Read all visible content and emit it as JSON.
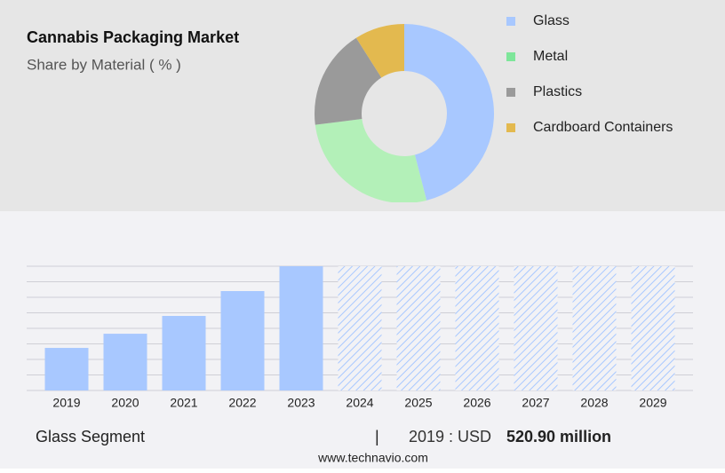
{
  "chart_data": [
    {
      "type": "donut",
      "title": "Cannabis Packaging Market",
      "subtitle": "Share by Material ( % )",
      "categories": [
        "Glass",
        "Metal",
        "Plastics",
        "Cardboard Containers"
      ],
      "values": [
        46,
        27,
        18,
        9
      ],
      "colors": [
        "#a8c8ff",
        "#b3f0b8",
        "#9a9a9a",
        "#e3b94f"
      ],
      "legend_colors": [
        "#a8c8ff",
        "#7ee69a",
        "#9a9a9a",
        "#e3b94f"
      ],
      "legend": "right"
    },
    {
      "type": "bar",
      "categories": [
        "2019",
        "2020",
        "2021",
        "2022",
        "2023",
        "2024",
        "2025",
        "2026",
        "2027",
        "2028",
        "2029"
      ],
      "values": [
        520.9,
        694,
        912,
        1216,
        1520,
        null,
        null,
        null,
        null,
        null,
        null
      ],
      "color": "#a8c8ff",
      "ylim": [
        0,
        1520
      ],
      "yticks": [
        0,
        190,
        380,
        570,
        760,
        950,
        1140,
        1330,
        1520
      ],
      "grid": true
    }
  ],
  "footer": {
    "segment": "Glass Segment",
    "separator": "|",
    "year_label": "2019 : USD",
    "value_label": "520.90 million",
    "source": "www.technavio.com"
  }
}
